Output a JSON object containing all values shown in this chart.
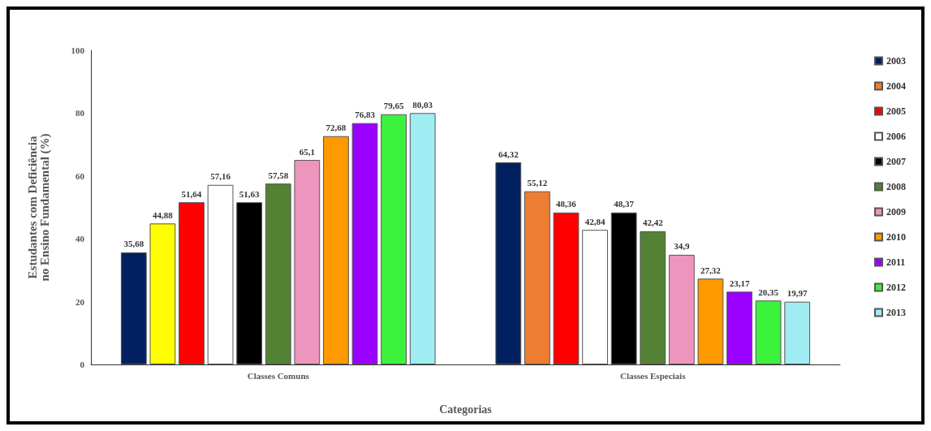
{
  "chart_data": {
    "type": "bar",
    "xlabel": "Categorias",
    "ylabel": "Estudantes com Deficiência\nno Ensino Fundamental (%)",
    "categories": [
      "Classes Comuns",
      "Classes Especiais"
    ],
    "series": [
      {
        "name": "2003",
        "color": "#002060",
        "values": [
          35.68,
          64.32
        ],
        "value_labels": [
          "35,68",
          "64,32"
        ]
      },
      {
        "name": "2004",
        "color": "#ed7d31",
        "colors": [
          "#ffff00",
          "#ed7d31"
        ],
        "values": [
          44.88,
          55.12
        ],
        "value_labels": [
          "44,88",
          "55,12"
        ]
      },
      {
        "name": "2005",
        "color": "#ff0000",
        "values": [
          51.64,
          48.36
        ],
        "value_labels": [
          "51,64",
          "48,36"
        ]
      },
      {
        "name": "2006",
        "color": "#ffffff",
        "values": [
          57.16,
          42.84
        ],
        "value_labels": [
          "57,16",
          "42,84"
        ]
      },
      {
        "name": "2007",
        "color": "#000000",
        "values": [
          51.63,
          48.37
        ],
        "value_labels": [
          "51,63",
          "48,37"
        ]
      },
      {
        "name": "2008",
        "color": "#548235",
        "values": [
          57.58,
          42.42
        ],
        "value_labels": [
          "57,58",
          "42,42"
        ]
      },
      {
        "name": "2009",
        "color": "#ee95be",
        "values": [
          65.1,
          34.9
        ],
        "value_labels": [
          "65,1",
          "34,9"
        ]
      },
      {
        "name": "2010",
        "color": "#ff9900",
        "values": [
          72.68,
          27.32
        ],
        "value_labels": [
          "72,68",
          "27,32"
        ]
      },
      {
        "name": "2011",
        "color": "#9900ff",
        "values": [
          76.83,
          23.17
        ],
        "value_labels": [
          "76,83",
          "23,17"
        ]
      },
      {
        "name": "2012",
        "color": "#3df23d",
        "values": [
          79.65,
          20.35
        ],
        "value_labels": [
          "79,65",
          "20,35"
        ]
      },
      {
        "name": "2013",
        "color": "#a0ecf3",
        "values": [
          80.03,
          19.97
        ],
        "value_labels": [
          "80,03",
          "19,97"
        ]
      }
    ],
    "ylim": [
      0,
      100
    ],
    "yticks": [
      0,
      20,
      40,
      60,
      80,
      100
    ],
    "grid": false,
    "legend": "right"
  }
}
